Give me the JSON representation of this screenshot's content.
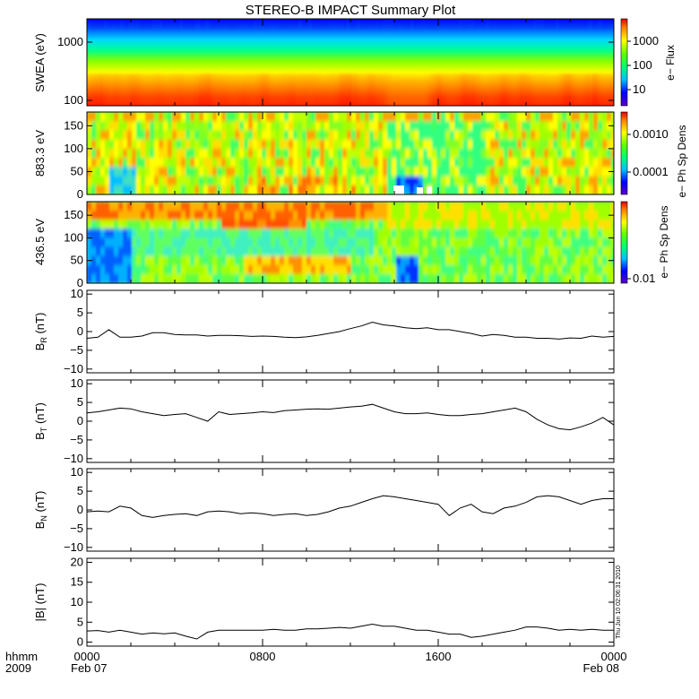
{
  "title": "STEREO-B IMPACT Summary Plot",
  "time_axis": {
    "row1_label": "hhmm",
    "row2_label": "2009",
    "ticks": [
      {
        "hours": 0,
        "label": "0000",
        "date": "Feb 07"
      },
      {
        "hours": 8,
        "label": "0800",
        "date": ""
      },
      {
        "hours": 16,
        "label": "1600",
        "date": ""
      },
      {
        "hours": 24,
        "label": "0000",
        "date": "Feb 08"
      }
    ]
  },
  "timestamp": "Thu Jun 10 02:06:31 2010",
  "colors": {
    "line": "#000000",
    "background": "#ffffff"
  },
  "chart_data": [
    {
      "type": "heatmap",
      "ylabel": "SWEA (eV)",
      "colorbar_label": "e− Flux",
      "scale": "log",
      "yticks": [
        {
          "value": 100,
          "label": "100"
        },
        {
          "value": 1000,
          "label": "1000"
        }
      ],
      "colorbar_ticks": [
        {
          "value": 10,
          "label": "10"
        },
        {
          "value": 100,
          "label": "100"
        },
        {
          "value": 1000,
          "label": "1000"
        }
      ]
    },
    {
      "type": "heatmap",
      "ylabel": "883.3 eV",
      "colorbar_label": "e− Ph Sp Dens",
      "ylim": [
        0,
        180
      ],
      "yticks": [
        {
          "value": 0,
          "label": "0"
        },
        {
          "value": 50,
          "label": "50"
        },
        {
          "value": 100,
          "label": "100"
        },
        {
          "value": 150,
          "label": "150"
        }
      ],
      "colorbar_ticks": [
        {
          "value": 0.0001,
          "label": "0.0001"
        },
        {
          "value": 0.001,
          "label": "0.0010"
        }
      ]
    },
    {
      "type": "heatmap",
      "ylabel": "436.5 eV",
      "colorbar_label": "e− Ph Sp Dens",
      "ylim": [
        0,
        180
      ],
      "yticks": [
        {
          "value": 0,
          "label": "0"
        },
        {
          "value": 50,
          "label": "50"
        },
        {
          "value": 100,
          "label": "100"
        },
        {
          "value": 150,
          "label": "150"
        }
      ],
      "colorbar_ticks": [
        {
          "value": 0.01,
          "label": "0.01"
        }
      ]
    },
    {
      "type": "line",
      "ylabel_main": "B",
      "ylabel_sub": "R",
      "ylabel_unit": " (nT)",
      "ylim": [
        -11,
        11
      ],
      "yticks": [
        {
          "value": 10,
          "label": "10"
        },
        {
          "value": 5,
          "label": "5"
        },
        {
          "value": 0,
          "label": "0"
        },
        {
          "value": -5,
          "label": "−5"
        },
        {
          "value": -10,
          "label": "−10"
        }
      ],
      "x": [
        0,
        0.5,
        1,
        1.5,
        2,
        2.5,
        3,
        3.5,
        4,
        4.5,
        5,
        5.5,
        6,
        6.5,
        7,
        7.5,
        8,
        8.5,
        9,
        9.5,
        10,
        10.5,
        11,
        11.5,
        12,
        12.5,
        13,
        13.5,
        14,
        14.5,
        15,
        15.5,
        16,
        16.5,
        17,
        17.5,
        18,
        18.5,
        19,
        19.5,
        20,
        20.5,
        21,
        21.5,
        22,
        22.5,
        23,
        23.5,
        24
      ],
      "y": [
        -1.8,
        -1.5,
        0.5,
        -1.5,
        -1.5,
        -1.2,
        -0.3,
        -0.3,
        -0.8,
        -0.9,
        -0.9,
        -1.2,
        -1.0,
        -1.0,
        -1.1,
        -1.3,
        -1.2,
        -1.3,
        -1.5,
        -1.6,
        -1.4,
        -1.0,
        -0.5,
        0.0,
        0.8,
        1.5,
        2.5,
        1.8,
        1.5,
        1.0,
        0.8,
        1.0,
        0.5,
        0.5,
        0.0,
        -0.5,
        -1.2,
        -0.8,
        -1.0,
        -1.5,
        -1.5,
        -1.8,
        -1.8,
        -2.0,
        -1.7,
        -1.8,
        -1.2,
        -1.5,
        -1.3
      ]
    },
    {
      "type": "line",
      "ylabel_main": "B",
      "ylabel_sub": "T",
      "ylabel_unit": " (nT)",
      "ylim": [
        -11,
        11
      ],
      "yticks": [
        {
          "value": 10,
          "label": "10"
        },
        {
          "value": 5,
          "label": "5"
        },
        {
          "value": 0,
          "label": "0"
        },
        {
          "value": -5,
          "label": "−5"
        },
        {
          "value": -10,
          "label": "−10"
        }
      ],
      "x": [
        0,
        0.5,
        1,
        1.5,
        2,
        2.5,
        3,
        3.5,
        4,
        4.5,
        5,
        5.5,
        6,
        6.5,
        7,
        7.5,
        8,
        8.5,
        9,
        9.5,
        10,
        10.5,
        11,
        11.5,
        12,
        12.5,
        13,
        13.5,
        14,
        14.5,
        15,
        15.5,
        16,
        16.5,
        17,
        17.5,
        18,
        18.5,
        19,
        19.5,
        20,
        20.5,
        21,
        21.5,
        22,
        22.5,
        23,
        23.5,
        24
      ],
      "y": [
        2.2,
        2.5,
        3.0,
        3.5,
        3.3,
        2.5,
        2.0,
        1.5,
        1.8,
        2.0,
        1.0,
        0.0,
        2.5,
        1.8,
        2.0,
        2.2,
        2.5,
        2.3,
        2.8,
        3.0,
        3.2,
        3.3,
        3.2,
        3.5,
        3.8,
        4.0,
        4.5,
        3.5,
        2.5,
        2.0,
        2.0,
        2.2,
        1.8,
        1.5,
        1.5,
        1.8,
        2.0,
        2.5,
        3.0,
        3.5,
        2.5,
        0.5,
        -1.0,
        -2.0,
        -2.3,
        -1.5,
        -0.5,
        1.0,
        -1.0
      ]
    },
    {
      "type": "line",
      "ylabel_main": "B",
      "ylabel_sub": "N",
      "ylabel_unit": " (nT)",
      "ylim": [
        -11,
        11
      ],
      "yticks": [
        {
          "value": 10,
          "label": "10"
        },
        {
          "value": 5,
          "label": "5"
        },
        {
          "value": 0,
          "label": "0"
        },
        {
          "value": -5,
          "label": "−5"
        },
        {
          "value": -10,
          "label": "−10"
        }
      ],
      "x": [
        0,
        0.5,
        1,
        1.5,
        2,
        2.5,
        3,
        3.5,
        4,
        4.5,
        5,
        5.5,
        6,
        6.5,
        7,
        7.5,
        8,
        8.5,
        9,
        9.5,
        10,
        10.5,
        11,
        11.5,
        12,
        12.5,
        13,
        13.5,
        14,
        14.5,
        15,
        15.5,
        16,
        16.5,
        17,
        17.5,
        18,
        18.5,
        19,
        19.5,
        20,
        20.5,
        21,
        21.5,
        22,
        22.5,
        23,
        23.5,
        24
      ],
      "y": [
        -0.5,
        -0.3,
        -0.5,
        1.0,
        0.5,
        -1.5,
        -2.0,
        -1.5,
        -1.2,
        -1.0,
        -1.5,
        -0.5,
        -0.3,
        -0.5,
        -1.0,
        -0.8,
        -1.0,
        -1.5,
        -1.2,
        -1.0,
        -1.5,
        -1.2,
        -0.5,
        0.5,
        1.0,
        2.0,
        3.0,
        3.8,
        3.5,
        3.0,
        2.5,
        2.0,
        1.5,
        -1.5,
        0.5,
        1.5,
        -0.5,
        -1.0,
        0.5,
        1.0,
        2.0,
        3.5,
        3.8,
        3.5,
        2.5,
        1.5,
        2.5,
        3.0,
        3.0
      ]
    },
    {
      "type": "line",
      "ylabel_main": "|B|",
      "ylabel_sub": "",
      "ylabel_unit": " (nT)",
      "ylim": [
        -1,
        21
      ],
      "yticks": [
        {
          "value": 20,
          "label": "20"
        },
        {
          "value": 15,
          "label": "15"
        },
        {
          "value": 10,
          "label": "10"
        },
        {
          "value": 5,
          "label": "5"
        },
        {
          "value": 0,
          "label": "0"
        }
      ],
      "x": [
        0,
        0.5,
        1,
        1.5,
        2,
        2.5,
        3,
        3.5,
        4,
        4.5,
        5,
        5.5,
        6,
        6.5,
        7,
        7.5,
        8,
        8.5,
        9,
        9.5,
        10,
        10.5,
        11,
        11.5,
        12,
        12.5,
        13,
        13.5,
        14,
        14.5,
        15,
        15.5,
        16,
        16.5,
        17,
        17.5,
        18,
        18.5,
        19,
        19.5,
        20,
        20.5,
        21,
        21.5,
        22,
        22.5,
        23,
        23.5,
        24
      ],
      "y": [
        2.8,
        2.9,
        2.5,
        3.0,
        2.5,
        2.0,
        2.3,
        2.1,
        2.3,
        1.5,
        0.8,
        2.5,
        3.0,
        3.0,
        3.0,
        3.0,
        3.0,
        3.2,
        3.0,
        3.0,
        3.3,
        3.3,
        3.5,
        3.7,
        3.5,
        4.0,
        4.5,
        4.0,
        4.0,
        3.5,
        3.0,
        3.0,
        2.5,
        2.0,
        2.0,
        1.2,
        1.5,
        2.0,
        2.5,
        3.0,
        3.8,
        3.8,
        3.5,
        3.0,
        3.2,
        3.0,
        3.2,
        3.0,
        3.0
      ]
    }
  ]
}
